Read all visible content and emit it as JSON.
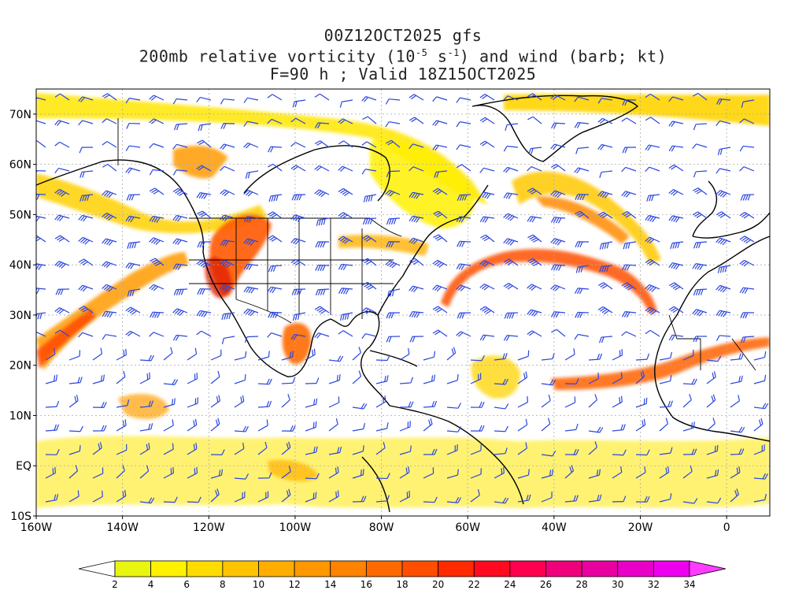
{
  "title": {
    "line1": "00Z12OCT2025 gfs",
    "line2_pre": "200mb relative vorticity (10",
    "line2_exp1": "-5",
    "line2_mid": " s",
    "line2_exp2": "-1",
    "line2_post": ") and wind (barb; kt)",
    "line3": "F=90 h ; Valid 18Z15OCT2025"
  },
  "map": {
    "lon_range": [
      -160,
      10
    ],
    "lat_range": [
      -10,
      75
    ],
    "lat_ticks": [
      {
        "value": 70,
        "label": "70N"
      },
      {
        "value": 60,
        "label": "60N"
      },
      {
        "value": 50,
        "label": "50N"
      },
      {
        "value": 40,
        "label": "40N"
      },
      {
        "value": 30,
        "label": "30N"
      },
      {
        "value": 20,
        "label": "20N"
      },
      {
        "value": 10,
        "label": "10N"
      },
      {
        "value": 0,
        "label": "EQ"
      },
      {
        "value": -10,
        "label": "10S"
      }
    ],
    "lon_ticks": [
      {
        "value": -160,
        "label": "160W"
      },
      {
        "value": -140,
        "label": "140W"
      },
      {
        "value": -120,
        "label": "120W"
      },
      {
        "value": -100,
        "label": "100W"
      },
      {
        "value": -80,
        "label": "80W"
      },
      {
        "value": -60,
        "label": "60W"
      },
      {
        "value": -40,
        "label": "40W"
      },
      {
        "value": -20,
        "label": "20W"
      },
      {
        "value": 0,
        "label": "0"
      }
    ],
    "colors": {
      "barb": "#2b46e0",
      "coast": "#000000",
      "grid": "#aaaaaa"
    }
  },
  "colorbar": {
    "levels": [
      "2",
      "4",
      "6",
      "8",
      "10",
      "12",
      "14",
      "16",
      "18",
      "20",
      "22",
      "24",
      "26",
      "28",
      "30",
      "32",
      "34"
    ],
    "colors": [
      "#e8f50f",
      "#fff200",
      "#ffdc00",
      "#ffc400",
      "#ffae00",
      "#ff9800",
      "#ff8200",
      "#ff6a00",
      "#ff4e00",
      "#ff2a00",
      "#ff0a1e",
      "#ff0050",
      "#f0007a",
      "#e800a0",
      "#e800c8",
      "#ee00ee",
      "#ff3cff"
    ],
    "low_color": "#ffffff"
  }
}
